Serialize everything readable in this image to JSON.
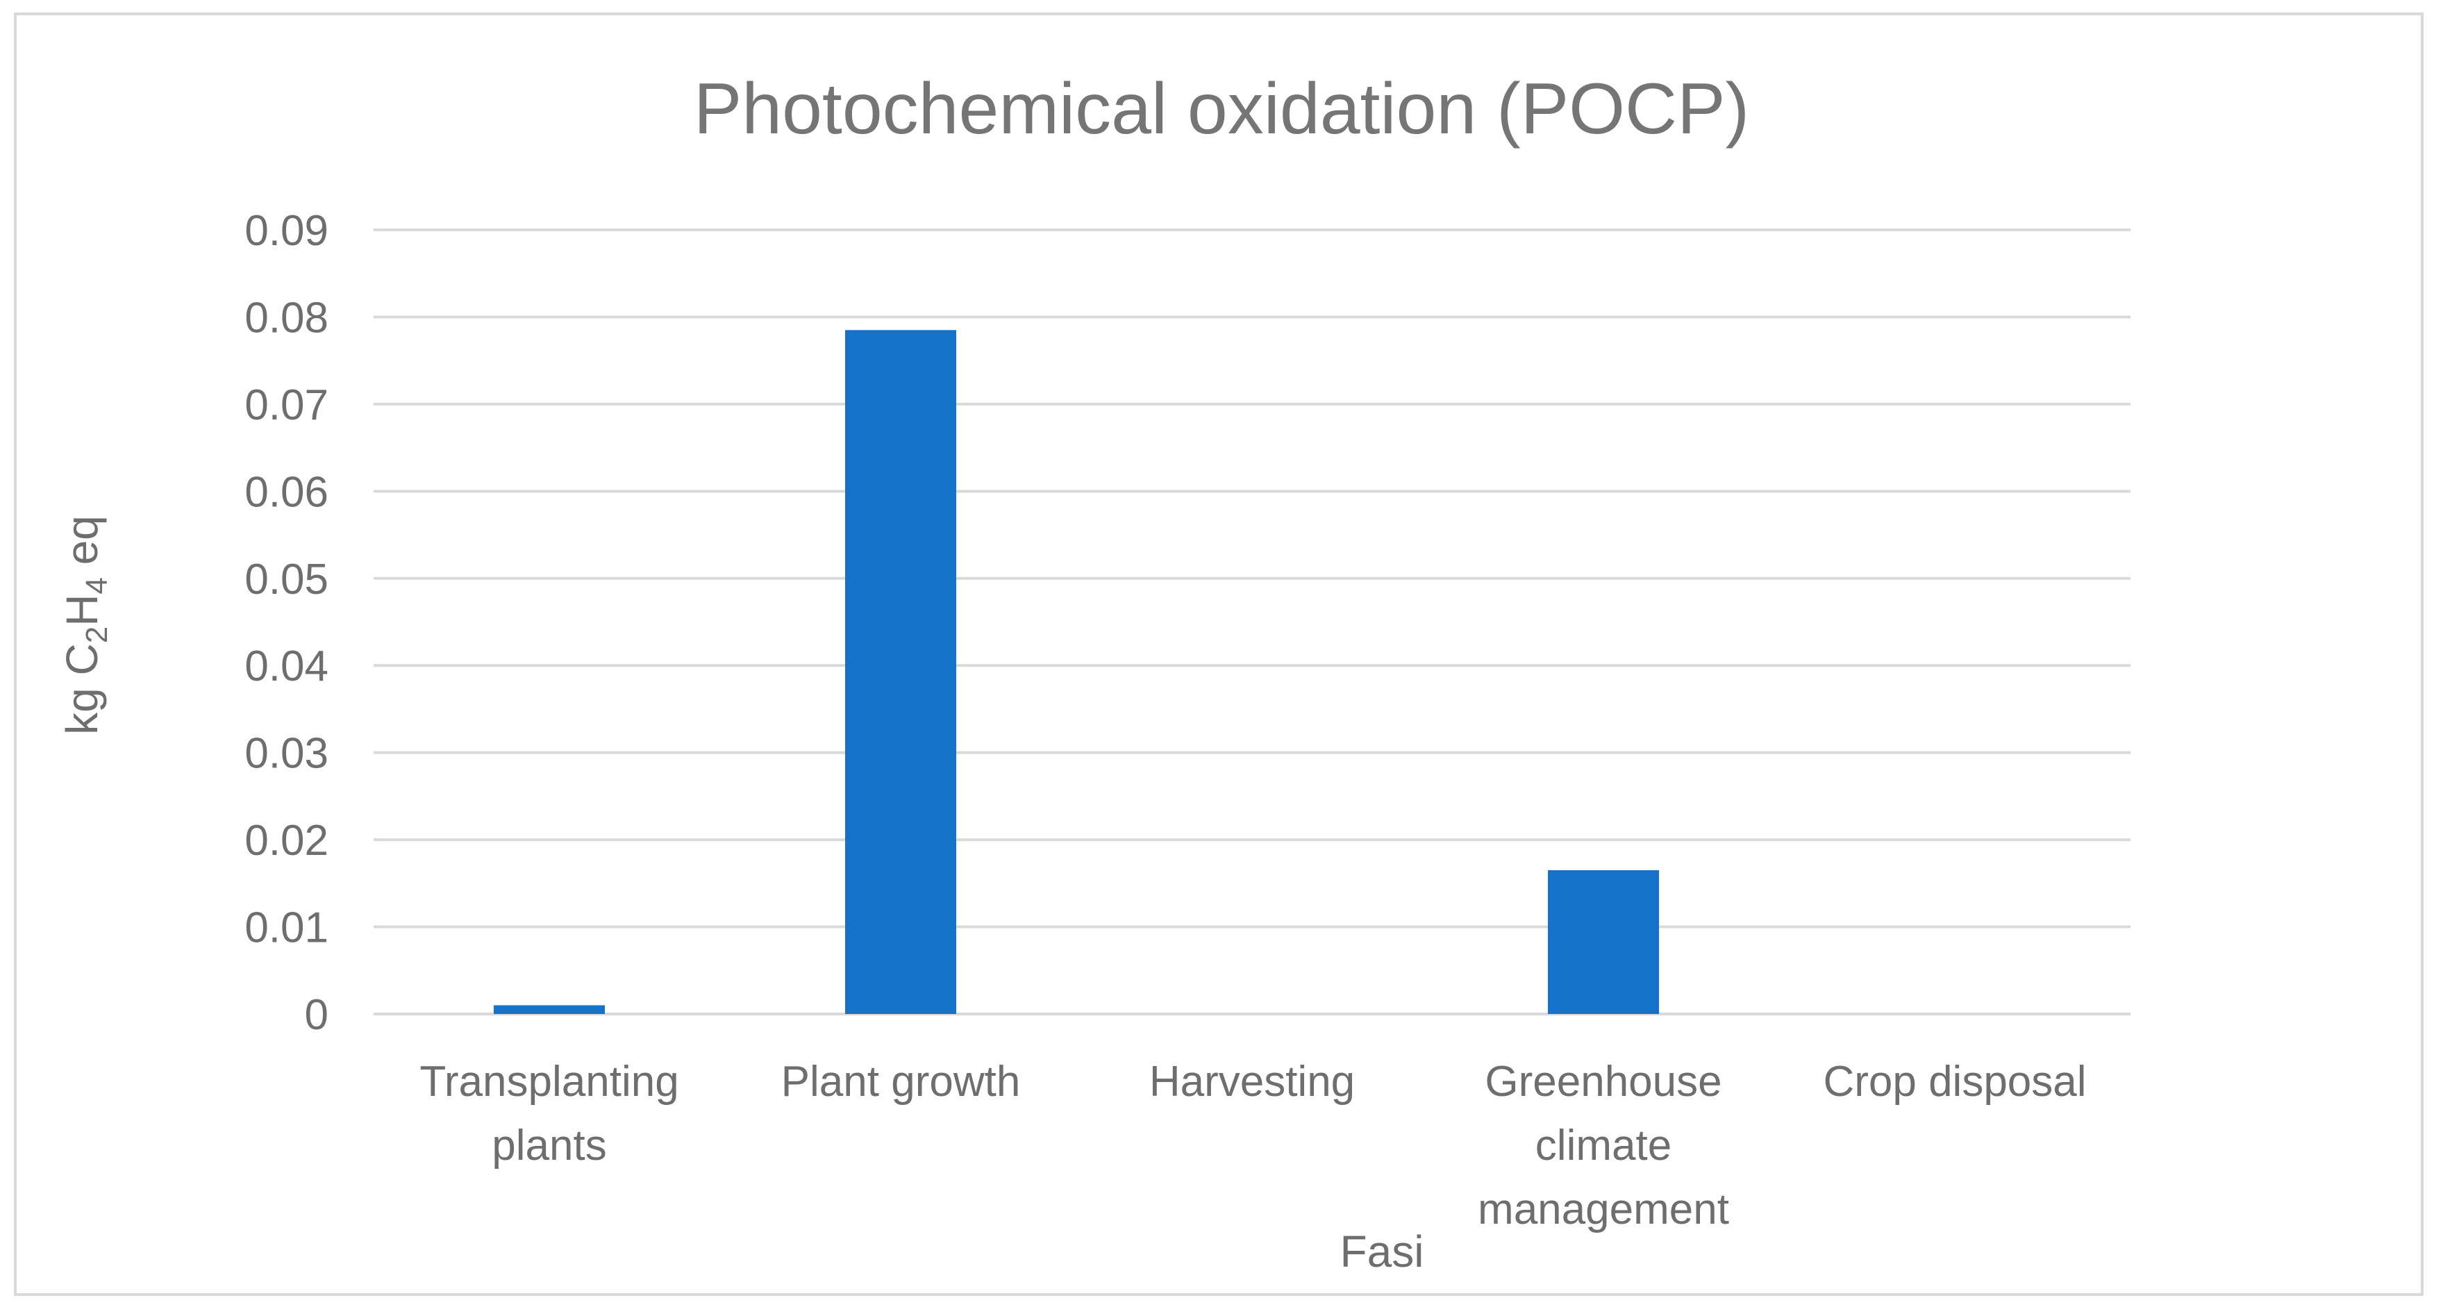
{
  "chart_data": {
    "type": "bar",
    "title": "Photochemical oxidation (POCP)",
    "xlabel": "Fasi",
    "ylabel": {
      "prefix": "kg C",
      "sub1": "2",
      "mid": "H",
      "sub2": "4",
      "suffix": " eq"
    },
    "categories": [
      [
        "Transplanting",
        "plants"
      ],
      [
        "Plant growth"
      ],
      [
        "Harvesting"
      ],
      [
        "Greenhouse",
        "climate",
        "management"
      ],
      [
        "Crop disposal"
      ]
    ],
    "values": [
      0.001,
      0.0785,
      0,
      0.0165,
      0
    ],
    "ylim": [
      0,
      0.09
    ],
    "yticks": [
      "0",
      "0.01",
      "0.02",
      "0.03",
      "0.04",
      "0.05",
      "0.06",
      "0.07",
      "0.08",
      "0.09"
    ],
    "grid": true,
    "bar_color": "#1672c9"
  }
}
